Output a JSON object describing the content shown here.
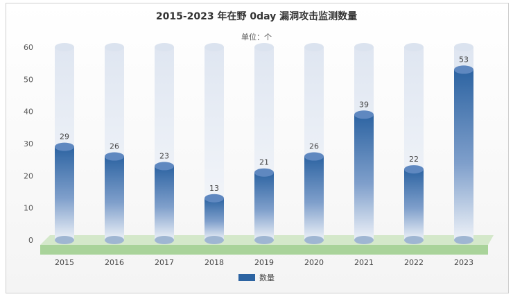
{
  "chart_data": {
    "type": "bar",
    "title": "2015-2023 年在野 0day 漏洞攻击监测数量",
    "subtitle": "单位：个",
    "categories": [
      "2015",
      "2016",
      "2017",
      "2018",
      "2019",
      "2020",
      "2021",
      "2022",
      "2023"
    ],
    "series": [
      {
        "name": "数量",
        "values": [
          29,
          26,
          23,
          13,
          21,
          26,
          39,
          22,
          53
        ]
      }
    ],
    "ylim": [
      0,
      60
    ],
    "yticks": [
      0,
      10,
      20,
      30,
      40,
      50,
      60
    ],
    "legend_position": "bottom",
    "colors": {
      "bar": "#2d64a2",
      "bar_light": "#e6ecf5",
      "floor": "#a9d39a"
    }
  }
}
